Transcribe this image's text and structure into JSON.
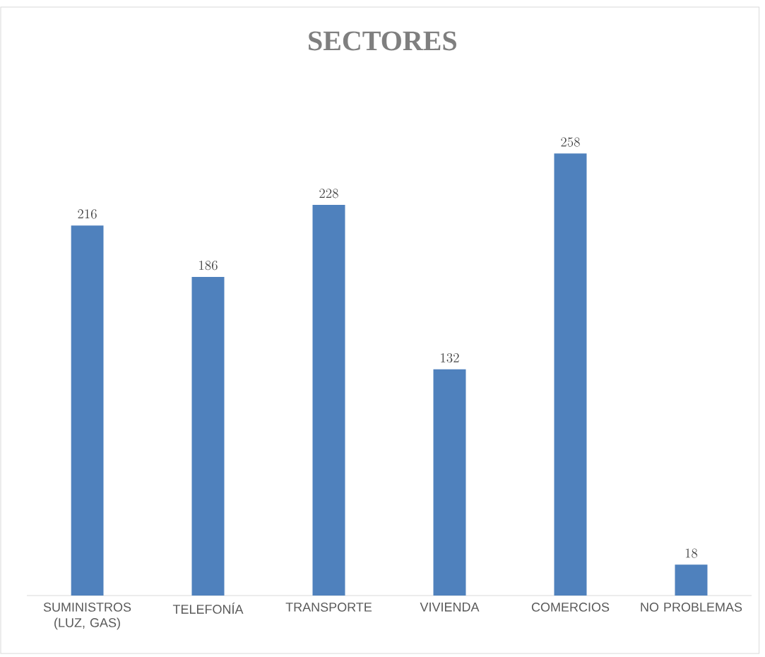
{
  "chart_data": {
    "type": "bar",
    "title": "SECTORES",
    "categories": [
      "SUMINISTROS (LUZ, GAS)",
      "TELEFONÍA",
      "TRANSPORTE",
      "VIVIENDA",
      "COMERCIOS",
      "NO PROBLEMAS"
    ],
    "values": [
      216,
      186,
      228,
      132,
      258,
      18
    ],
    "color": "#4f81bd",
    "data_labels": true
  }
}
